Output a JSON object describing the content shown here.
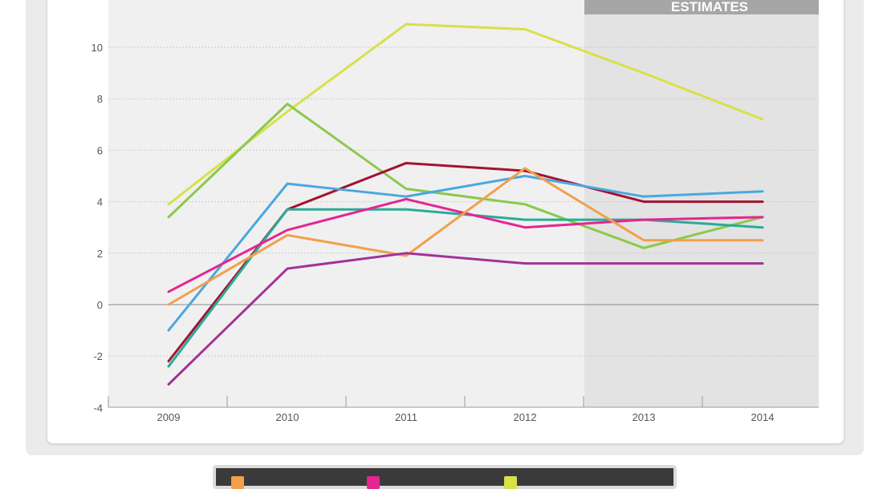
{
  "chart_data": {
    "type": "line",
    "x": [
      "2009",
      "2010",
      "2011",
      "2012",
      "2013",
      "2014"
    ],
    "yticks": [
      "-4",
      "-2",
      "0",
      "2",
      "4",
      "6",
      "8",
      "10"
    ],
    "ylim": [
      -4,
      12
    ],
    "grid": true,
    "shaded_region": {
      "label": "ESTIMATES",
      "from": "2012",
      "to": "2014"
    },
    "series": [
      {
        "color": "#d8e04a",
        "values": [
          3.9,
          7.5,
          10.9,
          10.7,
          9.0,
          7.2
        ]
      },
      {
        "color": "#8bc94a",
        "values": [
          3.4,
          7.8,
          4.5,
          3.9,
          2.2,
          3.4
        ]
      },
      {
        "color": "#a31232",
        "values": [
          -2.2,
          3.7,
          5.5,
          5.2,
          4.0,
          4.0
        ]
      },
      {
        "color": "#4aa8dd",
        "values": [
          -1.0,
          4.7,
          4.2,
          5.0,
          4.2,
          4.4
        ]
      },
      {
        "color": "#2bab96",
        "values": [
          -2.4,
          3.7,
          3.7,
          3.3,
          3.3,
          3.0
        ]
      },
      {
        "color": "#e62590",
        "values": [
          0.5,
          2.9,
          4.1,
          3.0,
          3.3,
          3.4
        ]
      },
      {
        "color": "#f2a04a",
        "values": [
          0.0,
          2.7,
          1.9,
          5.3,
          2.5,
          2.5
        ]
      },
      {
        "color": "#a13396",
        "values": [
          -3.1,
          1.4,
          2.0,
          1.6,
          1.6,
          1.6
        ]
      }
    ]
  },
  "legend": {
    "swatches": [
      {
        "color": "#f2a04a"
      },
      {
        "color": "#e62590"
      },
      {
        "color": "#d8e04a"
      }
    ]
  }
}
